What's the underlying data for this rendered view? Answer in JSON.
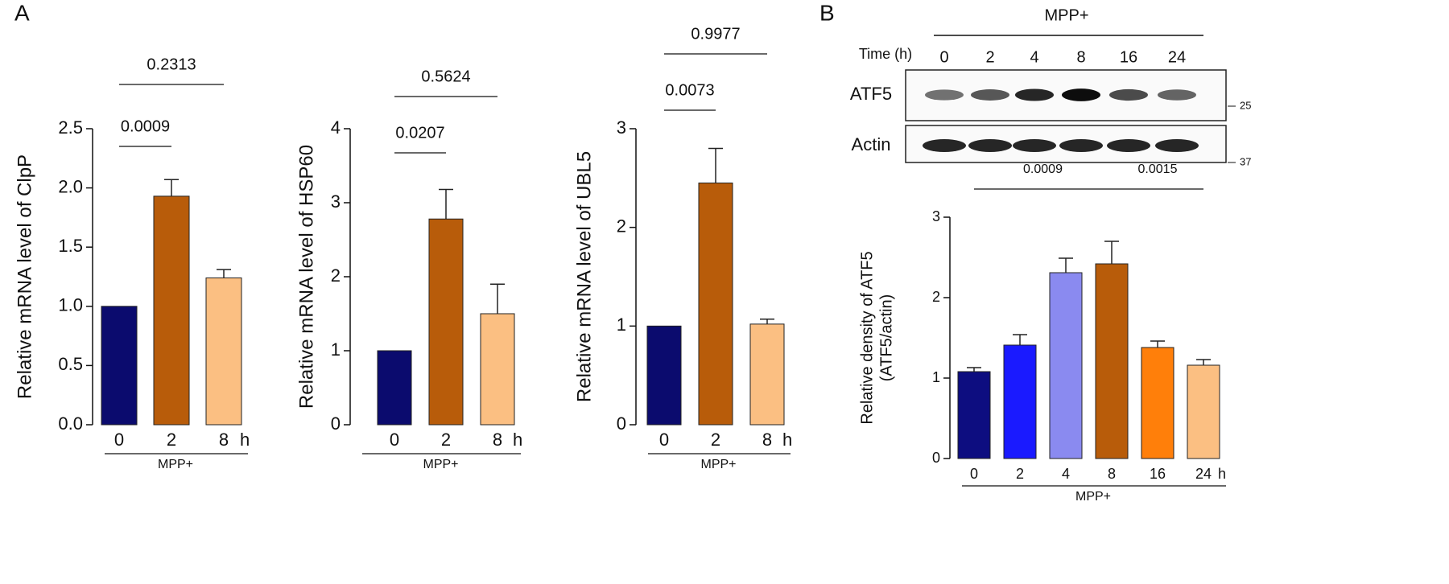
{
  "panel_labels": [
    "A",
    "B"
  ],
  "blot": {
    "group_label": "MPP+",
    "time_label": "Time (h)",
    "times": [
      "0",
      "2",
      "4",
      "8",
      "16",
      "24"
    ],
    "rows": [
      {
        "label": "ATF5",
        "marker": "25"
      },
      {
        "label": "Actin",
        "marker": "37"
      }
    ]
  },
  "chart_data": [
    {
      "type": "bar",
      "y_label": [
        "Relative mRNA level of ClpP"
      ],
      "categories": [
        "0",
        "2",
        "8"
      ],
      "x_unit": "h",
      "group_label": "MPP+",
      "values": [
        1.0,
        1.93,
        1.24
      ],
      "errors": [
        0,
        0.14,
        0.07
      ],
      "colors": [
        "#0b0b6e",
        "#b85c0a",
        "#fbbf82"
      ],
      "ylim": [
        0,
        2.5
      ],
      "yticks": [
        {
          "value": 0,
          "label": "0.0"
        },
        0.5,
        {
          "value": 1,
          "label": "1.0"
        },
        1.5,
        {
          "value": 2,
          "label": "2.0"
        },
        2.5
      ],
      "comparisons": [
        {
          "between": [
            "0",
            "2"
          ],
          "label": "0.0009"
        },
        {
          "between": [
            "0",
            "8"
          ],
          "label": "0.2313"
        }
      ]
    },
    {
      "type": "bar",
      "y_label": [
        "Relative mRNA level of HSP60"
      ],
      "categories": [
        "0",
        "2",
        "8"
      ],
      "x_unit": "h",
      "group_label": "MPP+",
      "values": [
        1.0,
        2.78,
        1.5
      ],
      "errors": [
        0,
        0.4,
        0.4
      ],
      "colors": [
        "#0b0b6e",
        "#b85c0a",
        "#fbbf82"
      ],
      "ylim": [
        0,
        4
      ],
      "yticks": [
        0,
        1,
        2,
        3,
        4
      ],
      "comparisons": [
        {
          "between": [
            "0",
            "2"
          ],
          "label": "0.0207"
        },
        {
          "between": [
            "0",
            "8"
          ],
          "label": "0.5624"
        }
      ]
    },
    {
      "type": "bar",
      "y_label": [
        "Relative mRNA level of UBL5"
      ],
      "categories": [
        "0",
        "2",
        "8"
      ],
      "x_unit": "h",
      "group_label": "MPP+",
      "values": [
        1.0,
        2.45,
        1.02
      ],
      "errors": [
        0,
        0.35,
        0.05
      ],
      "colors": [
        "#0b0b6e",
        "#b85c0a",
        "#fbbf82"
      ],
      "ylim": [
        0,
        3
      ],
      "yticks": [
        0,
        1,
        2,
        3
      ],
      "comparisons": [
        {
          "between": [
            "0",
            "2"
          ],
          "label": "0.0073"
        },
        {
          "between": [
            "0",
            "8"
          ],
          "label": "0.9977"
        }
      ]
    },
    {
      "type": "bar",
      "y_label": [
        "Relative density of ATF5",
        "(ATF5/actin)"
      ],
      "categories": [
        "0",
        "2",
        "4",
        "8",
        "16",
        "24"
      ],
      "x_unit": "h",
      "group_label": "MPP+",
      "values": [
        1.08,
        1.41,
        2.31,
        2.42,
        1.38,
        1.16
      ],
      "errors": [
        0.05,
        0.13,
        0.18,
        0.28,
        0.08,
        0.07
      ],
      "colors": [
        "#0d0d80",
        "#1a1aff",
        "#8a8af0",
        "#b85c0a",
        "#ff7f0a",
        "#fbbf82"
      ],
      "ylim": [
        0,
        3
      ],
      "yticks": [
        0,
        1,
        2,
        3
      ],
      "comparisons": [
        {
          "between": [
            "0",
            "8"
          ],
          "label": "0.0009"
        },
        {
          "between": [
            "8",
            "24"
          ],
          "label": "0.0015"
        }
      ]
    }
  ]
}
